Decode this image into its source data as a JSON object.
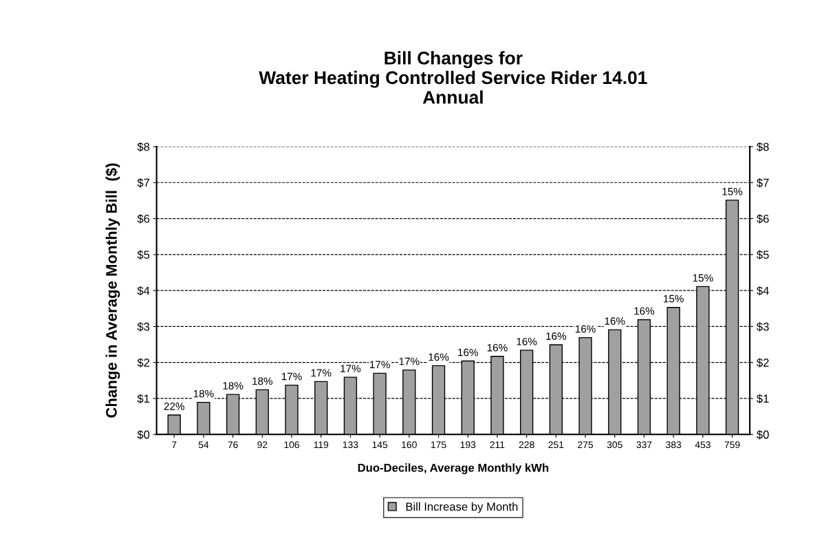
{
  "chart_data": {
    "type": "bar",
    "title": "Bill Changes for\nWater Heating Controlled Service Rider 14.01\nAnnual",
    "xlabel": "Duo-Deciles, Average Monthly kWh",
    "ylabel": "Change in Average Monthly Bill  ($)",
    "categories": [
      "7",
      "54",
      "76",
      "92",
      "106",
      "119",
      "133",
      "145",
      "160",
      "175",
      "193",
      "211",
      "228",
      "251",
      "275",
      "305",
      "337",
      "383",
      "453",
      "759"
    ],
    "series": [
      {
        "name": "Bill Increase by Month",
        "color": "#a0a0a0",
        "values": [
          0.54,
          0.89,
          1.11,
          1.24,
          1.37,
          1.47,
          1.59,
          1.7,
          1.79,
          1.91,
          2.04,
          2.17,
          2.34,
          2.49,
          2.69,
          2.91,
          3.19,
          3.53,
          4.11,
          6.51
        ]
      }
    ],
    "annotations": [
      {
        "text": "22%",
        "x": "7",
        "y": 0.54
      },
      {
        "text": "18%",
        "x": "54",
        "y": 0.89
      },
      {
        "text": "18%",
        "x": "76",
        "y": 1.11
      },
      {
        "text": "18%",
        "x": "92",
        "y": 1.24
      },
      {
        "text": "17%",
        "x": "106",
        "y": 1.37
      },
      {
        "text": "17%",
        "x": "119",
        "y": 1.47
      },
      {
        "text": "17%",
        "x": "133",
        "y": 1.59
      },
      {
        "text": "17%",
        "x": "145",
        "y": 1.7
      },
      {
        "text": "17%",
        "x": "160",
        "y": 1.79
      },
      {
        "text": "16%",
        "x": "175",
        "y": 1.91
      },
      {
        "text": "16%",
        "x": "193",
        "y": 2.04
      },
      {
        "text": "16%",
        "x": "211",
        "y": 2.17
      },
      {
        "text": "16%",
        "x": "228",
        "y": 2.34
      },
      {
        "text": "16%",
        "x": "251",
        "y": 2.49
      },
      {
        "text": "16%",
        "x": "275",
        "y": 2.69
      },
      {
        "text": "16%",
        "x": "305",
        "y": 2.91
      },
      {
        "text": "16%",
        "x": "337",
        "y": 3.19
      },
      {
        "text": "15%",
        "x": "383",
        "y": 3.53
      },
      {
        "text": "15%",
        "x": "453",
        "y": 4.11
      },
      {
        "text": "15%",
        "x": "759",
        "y": 6.51
      }
    ],
    "ylim": [
      0,
      8
    ],
    "yticks": [
      {
        "value": 0,
        "label": "$0"
      },
      {
        "value": 1,
        "label": "$1"
      },
      {
        "value": 2,
        "label": "$2"
      },
      {
        "value": 3,
        "label": "$3"
      },
      {
        "value": 4,
        "label": "$4"
      },
      {
        "value": 5,
        "label": "$5"
      },
      {
        "value": 6,
        "label": "$6"
      },
      {
        "value": 7,
        "label": "$7"
      },
      {
        "value": 8,
        "label": "$8"
      }
    ],
    "y2lim": [
      0,
      8
    ],
    "y2ticks": [
      {
        "value": 0,
        "label": "$0"
      },
      {
        "value": 1,
        "label": "$1"
      },
      {
        "value": 2,
        "label": "$2"
      },
      {
        "value": 3,
        "label": "$3"
      },
      {
        "value": 4,
        "label": "$4"
      },
      {
        "value": 5,
        "label": "$5"
      },
      {
        "value": 6,
        "label": "$6"
      },
      {
        "value": 7,
        "label": "$7"
      },
      {
        "value": 8,
        "label": "$8"
      }
    ],
    "grid": "y",
    "legend": "bottom"
  }
}
